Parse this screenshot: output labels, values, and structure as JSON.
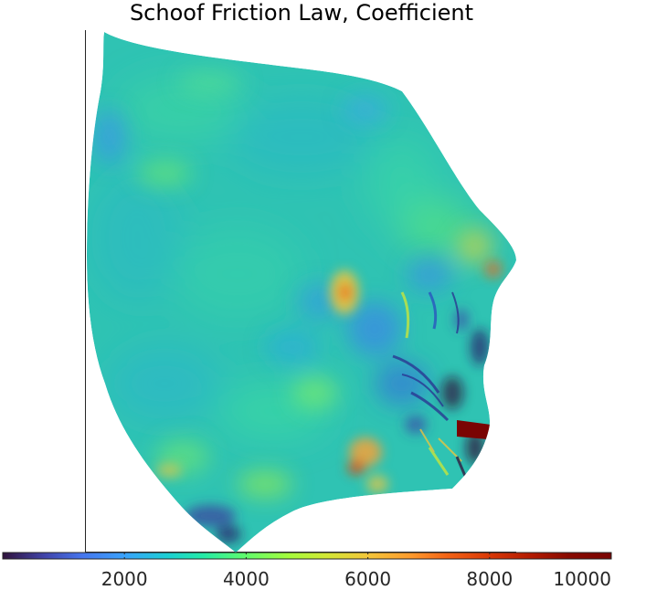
{
  "chart_data": {
    "type": "heatmap",
    "title": "Schoof Friction Law, Coefficient",
    "xlabel": "",
    "ylabel": "",
    "colormap": "turbo",
    "clim": [
      0,
      10000
    ],
    "colorbar": {
      "orientation": "horizontal",
      "placement": "bottom",
      "ticks": [
        2000,
        4000,
        6000,
        8000,
        10000
      ],
      "tick_labels": [
        "2000",
        "4000",
        "6000",
        "8000",
        "10000"
      ]
    },
    "field_summary": {
      "background_level": 3500,
      "features": [
        {
          "region": "interior",
          "level": 3500
        },
        {
          "region": "center-right high patch",
          "level": 6500
        },
        {
          "region": "lower-right terminus",
          "level": 10000
        },
        {
          "region": "southern tip low",
          "level": 500
        }
      ]
    }
  }
}
